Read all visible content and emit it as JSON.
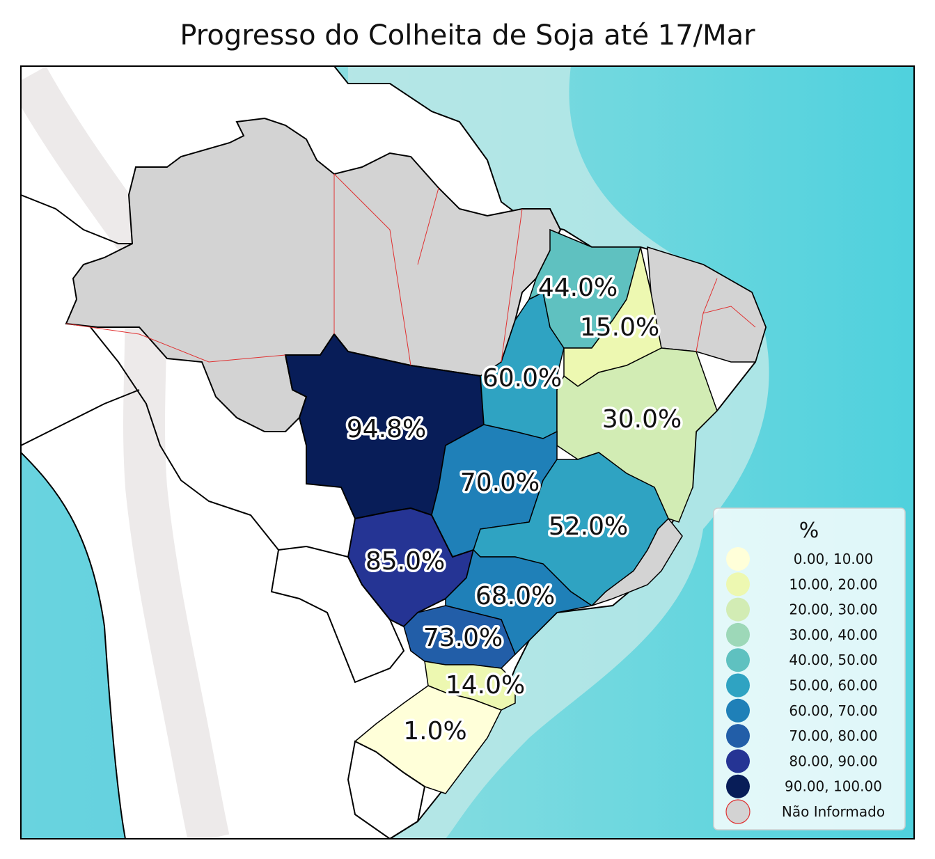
{
  "title": "Progresso do Colheita de Soja até 17/Mar",
  "legend": {
    "title": "%",
    "items": [
      {
        "label": "0.00,  10.00",
        "color": "#ffffd9"
      },
      {
        "label": "10.00,  20.00",
        "color": "#edf8b1"
      },
      {
        "label": "20.00,  30.00",
        "color": "#d2ecb4"
      },
      {
        "label": "30.00,  40.00",
        "color": "#9dd8b8"
      },
      {
        "label": "40.00,  50.00",
        "color": "#5fc1c0"
      },
      {
        "label": "50.00,  60.00",
        "color": "#2fa3c2"
      },
      {
        "label": "60.00,  70.00",
        "color": "#1f80b8"
      },
      {
        "label": "70.00,  80.00",
        "color": "#225ea8"
      },
      {
        "label": "80.00,  90.00",
        "color": "#253494"
      },
      {
        "label": "90.00, 100.00",
        "color": "#081d58"
      },
      {
        "label": "Não Informado",
        "color": "#d3d3d3"
      }
    ]
  },
  "states": [
    {
      "label": "94.8%",
      "value": 94.8,
      "color": "#081d58"
    },
    {
      "label": "85.0%",
      "value": 85.0,
      "color": "#253494"
    },
    {
      "label": "73.0%",
      "value": 73.0,
      "color": "#225ea8"
    },
    {
      "label": "70.0%",
      "value": 70.0,
      "color": "#1f80b8"
    },
    {
      "label": "68.0%",
      "value": 68.0,
      "color": "#1f80b8"
    },
    {
      "label": "60.0%",
      "value": 60.0,
      "color": "#2fa3c2"
    },
    {
      "label": "52.0%",
      "value": 52.0,
      "color": "#2fa3c2"
    },
    {
      "label": "44.0%",
      "value": 44.0,
      "color": "#5fc1c0"
    },
    {
      "label": "30.0%",
      "value": 30.0,
      "color": "#d2ecb4"
    },
    {
      "label": "15.0%",
      "value": 15.0,
      "color": "#edf8b1"
    },
    {
      "label": "14.0%",
      "value": 14.0,
      "color": "#edf8b1"
    },
    {
      "label": "1.0%",
      "value": 1.0,
      "color": "#ffffd9"
    }
  ],
  "colors": {
    "ocean": "#5fd3df",
    "ocean_light": "#bfe9e7",
    "land": "#ffffff",
    "no_info": "#d3d3d3",
    "border": "#000000",
    "state_border": "#e03030"
  }
}
